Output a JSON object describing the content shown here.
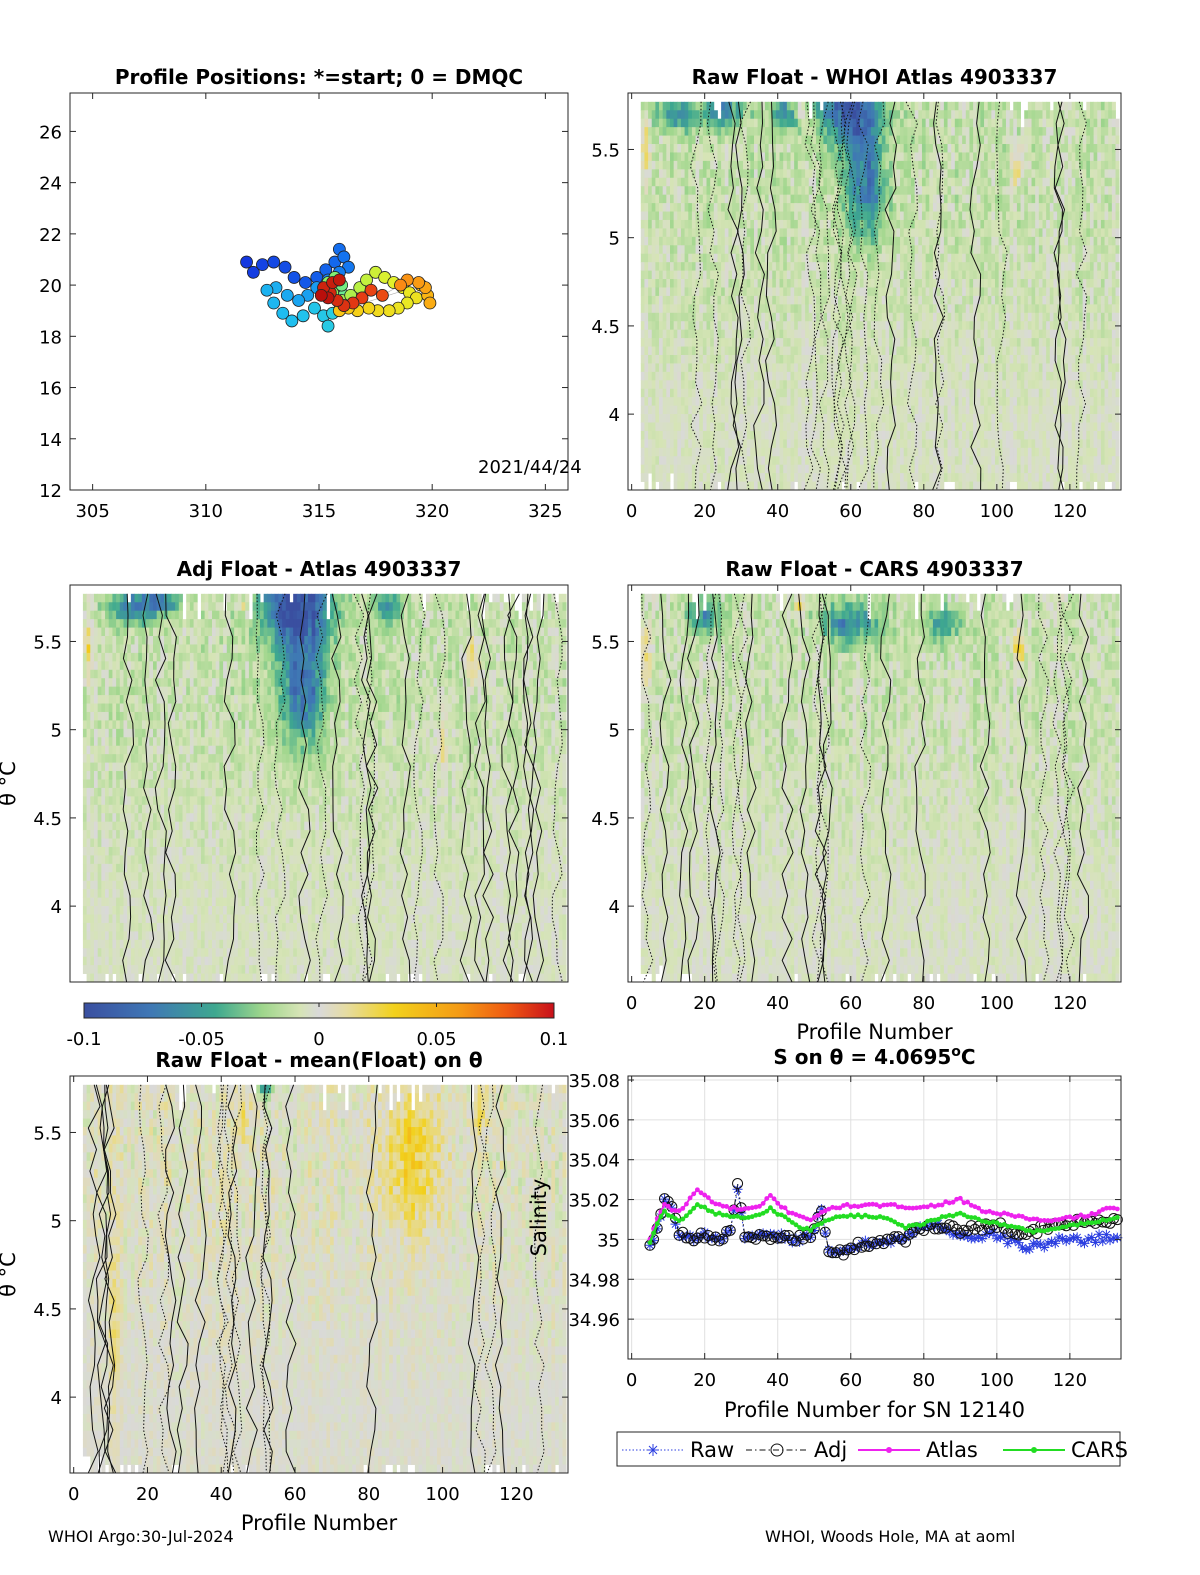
{
  "footer": {
    "left": "WHOI Argo:30-Jul-2024",
    "right": "WHOI, Woods Hole, MA at aoml"
  },
  "chart_data": [
    {
      "id": "positions",
      "type": "scatter",
      "title": "Profile Positions: *=start; 0 = DMQC",
      "annotation": "2021/44/24",
      "xlim": [
        304,
        326
      ],
      "ylim": [
        12,
        27.5
      ],
      "xticks": [
        305,
        310,
        315,
        320,
        325
      ],
      "yticks": [
        12,
        14,
        16,
        18,
        20,
        22,
        24,
        26
      ],
      "track": [
        [
          311.8,
          20.9
        ],
        [
          312.1,
          20.5
        ],
        [
          312.5,
          20.8
        ],
        [
          313.0,
          20.9
        ],
        [
          313.5,
          20.7
        ],
        [
          313.9,
          20.3
        ],
        [
          314.4,
          20.1
        ],
        [
          314.9,
          20.3
        ],
        [
          315.3,
          20.6
        ],
        [
          315.7,
          20.9
        ],
        [
          315.9,
          21.4
        ],
        [
          316.1,
          21.1
        ],
        [
          316.3,
          20.7
        ],
        [
          315.9,
          20.5
        ],
        [
          315.4,
          20.2
        ],
        [
          314.9,
          19.9
        ],
        [
          314.5,
          19.6
        ],
        [
          314.1,
          19.4
        ],
        [
          313.6,
          19.6
        ],
        [
          313.1,
          19.9
        ],
        [
          312.7,
          19.8
        ],
        [
          313.0,
          19.3
        ],
        [
          313.4,
          18.9
        ],
        [
          313.8,
          18.6
        ],
        [
          314.3,
          18.8
        ],
        [
          314.8,
          19.1
        ],
        [
          315.2,
          18.8
        ],
        [
          315.4,
          18.4
        ],
        [
          315.6,
          18.9
        ],
        [
          315.9,
          19.3
        ],
        [
          316.1,
          19.6
        ],
        [
          316.0,
          20.0
        ],
        [
          315.7,
          20.3
        ],
        [
          315.4,
          20.1
        ],
        [
          315.6,
          19.7
        ],
        [
          316.0,
          19.4
        ],
        [
          316.4,
          19.6
        ],
        [
          316.8,
          19.9
        ],
        [
          317.1,
          20.2
        ],
        [
          317.5,
          20.5
        ],
        [
          317.9,
          20.3
        ],
        [
          318.3,
          20.1
        ],
        [
          318.7,
          19.9
        ],
        [
          319.0,
          19.7
        ],
        [
          319.3,
          19.5
        ],
        [
          318.9,
          19.3
        ],
        [
          318.5,
          19.1
        ],
        [
          318.1,
          19.0
        ],
        [
          317.6,
          19.0
        ],
        [
          317.2,
          19.1
        ],
        [
          316.7,
          19.0
        ],
        [
          316.3,
          19.1
        ],
        [
          315.9,
          19.0
        ],
        [
          319.5,
          20.0
        ],
        [
          319.8,
          19.6
        ],
        [
          319.9,
          19.3
        ],
        [
          319.7,
          19.9
        ],
        [
          319.4,
          20.1
        ],
        [
          318.9,
          20.2
        ],
        [
          318.6,
          20.0
        ],
        [
          317.8,
          19.6
        ],
        [
          317.3,
          19.8
        ],
        [
          316.9,
          19.5
        ],
        [
          316.5,
          19.3
        ],
        [
          316.1,
          19.2
        ],
        [
          315.8,
          19.4
        ],
        [
          315.5,
          19.7
        ],
        [
          315.2,
          19.9
        ],
        [
          315.6,
          20.1
        ],
        [
          315.9,
          20.2
        ],
        [
          315.4,
          19.5
        ],
        [
          315.1,
          19.6
        ]
      ]
    },
    {
      "id": "rawAtlas",
      "type": "heatmap",
      "title": "Raw Float - WHOI Atlas  4903337",
      "xlim": [
        -1,
        134
      ],
      "ylim": [
        3.57,
        5.82
      ],
      "xticks": [
        0,
        20,
        40,
        60,
        80,
        100,
        120
      ],
      "yticks": [
        4,
        4.5,
        5,
        5.5
      ],
      "seed": 11,
      "negBlob": [
        [
          60,
          5.75,
          8,
          0.22,
          -0.085
        ],
        [
          64,
          5.3,
          5,
          0.3,
          -0.06
        ],
        [
          25,
          5.72,
          6,
          0.1,
          -0.05
        ],
        [
          42,
          5.7,
          4,
          0.1,
          -0.04
        ],
        [
          12,
          5.7,
          5,
          0.1,
          -0.045
        ]
      ],
      "posBlob": [
        [
          4,
          5.5,
          1.2,
          0.15,
          0.03
        ],
        [
          106,
          5.4,
          1.5,
          0.1,
          0.035
        ],
        [
          46,
          5.7,
          1.2,
          0.05,
          0.035
        ]
      ],
      "base": -0.012
    },
    {
      "id": "adjAtlas",
      "type": "heatmap",
      "title": "Adj Float - Atlas  4903337",
      "xlim": [
        -1,
        134
      ],
      "ylim": [
        3.57,
        5.82
      ],
      "xticks": [],
      "yticks": [
        4,
        4.5,
        5,
        5.5
      ],
      "ylabel": "θ °C",
      "seed": 23,
      "negBlob": [
        [
          60,
          5.7,
          9,
          0.2,
          -0.09
        ],
        [
          62,
          5.25,
          6,
          0.35,
          -0.065
        ],
        [
          16,
          5.7,
          6,
          0.1,
          -0.05
        ],
        [
          24,
          5.72,
          5,
          0.08,
          -0.05
        ],
        [
          85,
          5.7,
          4,
          0.1,
          -0.04
        ]
      ],
      "posBlob": [
        [
          4,
          5.45,
          1.2,
          0.2,
          0.03
        ],
        [
          108,
          5.4,
          2,
          0.15,
          0.035
        ],
        [
          46,
          5.7,
          1.2,
          0.05,
          0.035
        ],
        [
          100,
          4.9,
          1,
          0.2,
          0.025
        ]
      ],
      "base": -0.012
    },
    {
      "id": "rawCars",
      "type": "heatmap",
      "title": "Raw Float - CARS  4903337",
      "xlim": [
        -1,
        134
      ],
      "ylim": [
        3.57,
        5.82
      ],
      "xticks": [
        0,
        20,
        40,
        60,
        80,
        100,
        120
      ],
      "yticks": [
        4,
        4.5,
        5,
        5.5
      ],
      "xlabel": "Profile Number",
      "seed": 37,
      "negBlob": [
        [
          60,
          5.6,
          8,
          0.12,
          -0.05
        ],
        [
          20,
          5.65,
          5,
          0.1,
          -0.045
        ],
        [
          86,
          5.6,
          5,
          0.1,
          -0.04
        ]
      ],
      "posBlob": [
        [
          4,
          5.4,
          1.2,
          0.2,
          0.03
        ],
        [
          106,
          5.45,
          1.5,
          0.1,
          0.035
        ],
        [
          46,
          5.7,
          1.2,
          0.05,
          0.04
        ]
      ],
      "base": -0.01
    },
    {
      "id": "rawMean",
      "type": "heatmap",
      "title": "Raw Float - mean(Float) on θ",
      "xlim": [
        -1,
        134
      ],
      "ylim": [
        3.57,
        5.82
      ],
      "xticks": [
        0,
        20,
        40,
        60,
        80,
        100,
        120
      ],
      "yticks": [
        4,
        4.5,
        5,
        5.5
      ],
      "ylabel": "θ °C",
      "xlabel": "Profile Number",
      "seed": 51,
      "negBlob": [
        [
          52,
          5.75,
          2,
          0.06,
          -0.06
        ]
      ],
      "posBlob": [
        [
          92,
          5.35,
          8,
          0.45,
          0.03
        ],
        [
          11,
          4.3,
          1.5,
          0.6,
          0.025
        ],
        [
          46,
          5.6,
          1.2,
          0.15,
          0.03
        ],
        [
          110,
          5.6,
          3,
          0.2,
          0.015
        ]
      ],
      "base": 0.0
    },
    {
      "id": "colorbar",
      "type": "colorbar",
      "range": [
        -0.1,
        0.1
      ],
      "ticks": [
        "-0.1",
        "-0.05",
        "0",
        "0.05",
        "0.1"
      ]
    },
    {
      "id": "salinity",
      "type": "line",
      "title": "S on θ = 4.0695",
      "title_unit": "°C",
      "xlabel": "Profile Number for SN 12140",
      "ylabel": "Salinity",
      "xlim": [
        -1,
        134
      ],
      "ylim": [
        34.94,
        35.082
      ],
      "xticks": [
        0,
        20,
        40,
        60,
        80,
        100,
        120
      ],
      "yticks": [
        "34.96",
        "34.98",
        "35",
        "35.02",
        "35.04",
        "35.06",
        "35.08"
      ],
      "legend": [
        "Raw",
        "Adj",
        "Atlas",
        "CARS"
      ],
      "x_start": 5,
      "x_end": 133,
      "atlas_anchor": [
        [
          5,
          35.0
        ],
        [
          7,
          35.01
        ],
        [
          9,
          35.018
        ],
        [
          11,
          35.015
        ],
        [
          13,
          35.014
        ],
        [
          15,
          35.018
        ],
        [
          18,
          35.025
        ],
        [
          20,
          35.022
        ],
        [
          23,
          35.018
        ],
        [
          26,
          35.016
        ],
        [
          30,
          35.015
        ],
        [
          35,
          35.016
        ],
        [
          38,
          35.022
        ],
        [
          40,
          35.018
        ],
        [
          43,
          35.014
        ],
        [
          46,
          35.012
        ],
        [
          49,
          35.01
        ],
        [
          52,
          35.013
        ],
        [
          55,
          35.016
        ],
        [
          60,
          35.017
        ],
        [
          70,
          35.017
        ],
        [
          80,
          35.016
        ],
        [
          85,
          35.018
        ],
        [
          90,
          35.02
        ],
        [
          95,
          35.015
        ],
        [
          100,
          35.013
        ],
        [
          105,
          35.012
        ],
        [
          110,
          35.01
        ],
        [
          115,
          35.009
        ],
        [
          120,
          35.011
        ],
        [
          125,
          35.012
        ],
        [
          130,
          35.015
        ],
        [
          133,
          35.016
        ]
      ],
      "cars_anchor": [
        [
          5,
          34.998
        ],
        [
          7,
          35.008
        ],
        [
          9,
          35.014
        ],
        [
          11,
          35.011
        ],
        [
          13,
          35.009
        ],
        [
          15,
          35.012
        ],
        [
          18,
          35.018
        ],
        [
          20,
          35.016
        ],
        [
          23,
          35.013
        ],
        [
          26,
          35.012
        ],
        [
          30,
          35.011
        ],
        [
          35,
          35.012
        ],
        [
          38,
          35.016
        ],
        [
          40,
          35.013
        ],
        [
          43,
          35.01
        ],
        [
          46,
          35.006
        ],
        [
          49,
          35.005
        ],
        [
          52,
          35.008
        ],
        [
          55,
          35.011
        ],
        [
          60,
          35.012
        ],
        [
          70,
          35.011
        ],
        [
          75,
          35.006
        ],
        [
          80,
          35.008
        ],
        [
          85,
          35.011
        ],
        [
          90,
          35.013
        ],
        [
          95,
          35.01
        ],
        [
          100,
          35.008
        ],
        [
          105,
          35.006
        ],
        [
          110,
          35.004
        ],
        [
          115,
          35.005
        ],
        [
          120,
          35.007
        ],
        [
          125,
          35.008
        ],
        [
          130,
          35.01
        ],
        [
          133,
          35.011
        ]
      ],
      "raw_anchor": [
        [
          5,
          34.996
        ],
        [
          7,
          35.005
        ],
        [
          9,
          35.02
        ],
        [
          11,
          35.016
        ],
        [
          13,
          35.003
        ],
        [
          16,
          35.001
        ],
        [
          20,
          35.002
        ],
        [
          24,
          35.001
        ],
        [
          27,
          35.003
        ],
        [
          29,
          35.026
        ],
        [
          31,
          35.0
        ],
        [
          35,
          35.001
        ],
        [
          40,
          35.002
        ],
        [
          45,
          35.0
        ],
        [
          49,
          35.002
        ],
        [
          52,
          35.014
        ],
        [
          54,
          34.993
        ],
        [
          57,
          34.993
        ],
        [
          60,
          34.996
        ],
        [
          65,
          34.998
        ],
        [
          70,
          35.0
        ],
        [
          75,
          35.0
        ],
        [
          78,
          35.005
        ],
        [
          82,
          35.007
        ],
        [
          86,
          35.006
        ],
        [
          90,
          35.002
        ],
        [
          95,
          35.001
        ],
        [
          100,
          35.002
        ],
        [
          104,
          34.999
        ],
        [
          108,
          34.996
        ],
        [
          112,
          34.997
        ],
        [
          116,
          34.999
        ],
        [
          120,
          35.0
        ],
        [
          125,
          35.0
        ],
        [
          130,
          35.001
        ],
        [
          133,
          35.001
        ]
      ],
      "adj_anchor": [
        [
          5,
          34.996
        ],
        [
          7,
          35.005
        ],
        [
          9,
          35.022
        ],
        [
          11,
          35.016
        ],
        [
          13,
          35.003
        ],
        [
          16,
          35.001
        ],
        [
          20,
          35.002
        ],
        [
          24,
          35.001
        ],
        [
          27,
          35.003
        ],
        [
          29,
          35.028
        ],
        [
          31,
          35.0
        ],
        [
          35,
          35.001
        ],
        [
          40,
          35.002
        ],
        [
          45,
          35.0
        ],
        [
          49,
          35.002
        ],
        [
          52,
          35.014
        ],
        [
          54,
          34.993
        ],
        [
          57,
          34.993
        ],
        [
          60,
          34.996
        ],
        [
          65,
          34.998
        ],
        [
          70,
          35.0
        ],
        [
          75,
          35.0
        ],
        [
          78,
          35.005
        ],
        [
          82,
          35.007
        ],
        [
          86,
          35.007
        ],
        [
          90,
          35.004
        ],
        [
          95,
          35.006
        ],
        [
          100,
          35.008
        ],
        [
          104,
          35.004
        ],
        [
          108,
          35.002
        ],
        [
          112,
          35.005
        ],
        [
          116,
          35.007
        ],
        [
          120,
          35.008
        ],
        [
          125,
          35.009
        ],
        [
          130,
          35.01
        ],
        [
          133,
          35.008
        ]
      ]
    }
  ]
}
